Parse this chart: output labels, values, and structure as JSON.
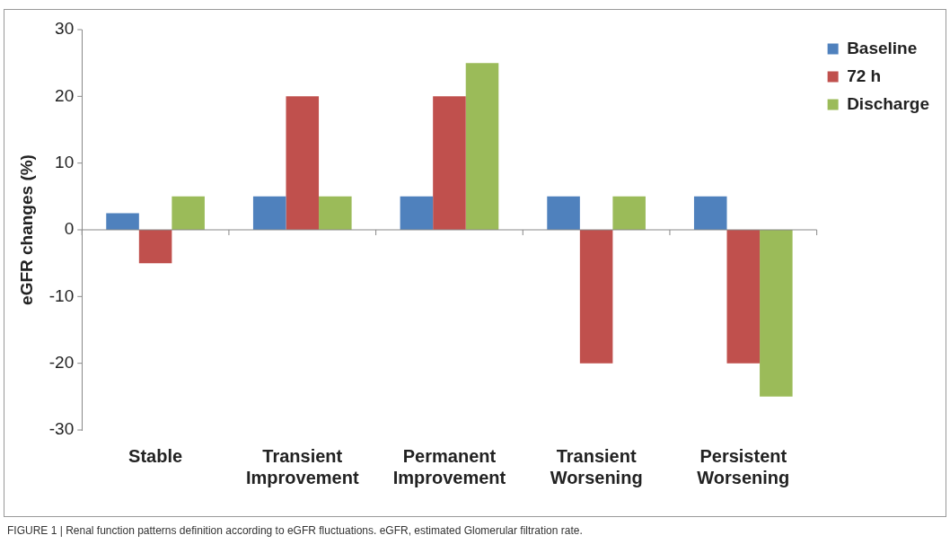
{
  "chart_data": {
    "type": "bar",
    "ylabel": "eGFR changes (%)",
    "categories": [
      "Stable",
      "Transient Improvement",
      "Permanent Improvement",
      "Transient Worsening",
      "Persistent Worsening"
    ],
    "series": [
      {
        "name": "Baseline",
        "color": "#4f81bd",
        "values": [
          2.5,
          5,
          5,
          5,
          5
        ]
      },
      {
        "name": "72 h",
        "color": "#c0504d",
        "values": [
          -5,
          20,
          20,
          -20,
          -20
        ]
      },
      {
        "name": "Discharge",
        "color": "#9bbb59",
        "values": [
          5,
          5,
          25,
          5,
          -25
        ]
      }
    ],
    "ylim": [
      -30,
      30
    ],
    "yticks": [
      -30,
      -20,
      -10,
      0,
      10,
      20,
      30
    ],
    "legend": "top right",
    "annotations": [
      "FIGURE 1 | Renal function patterns definition according to eGFR fluctuations. eGFR, estimated Glomerular filtration rate."
    ]
  }
}
